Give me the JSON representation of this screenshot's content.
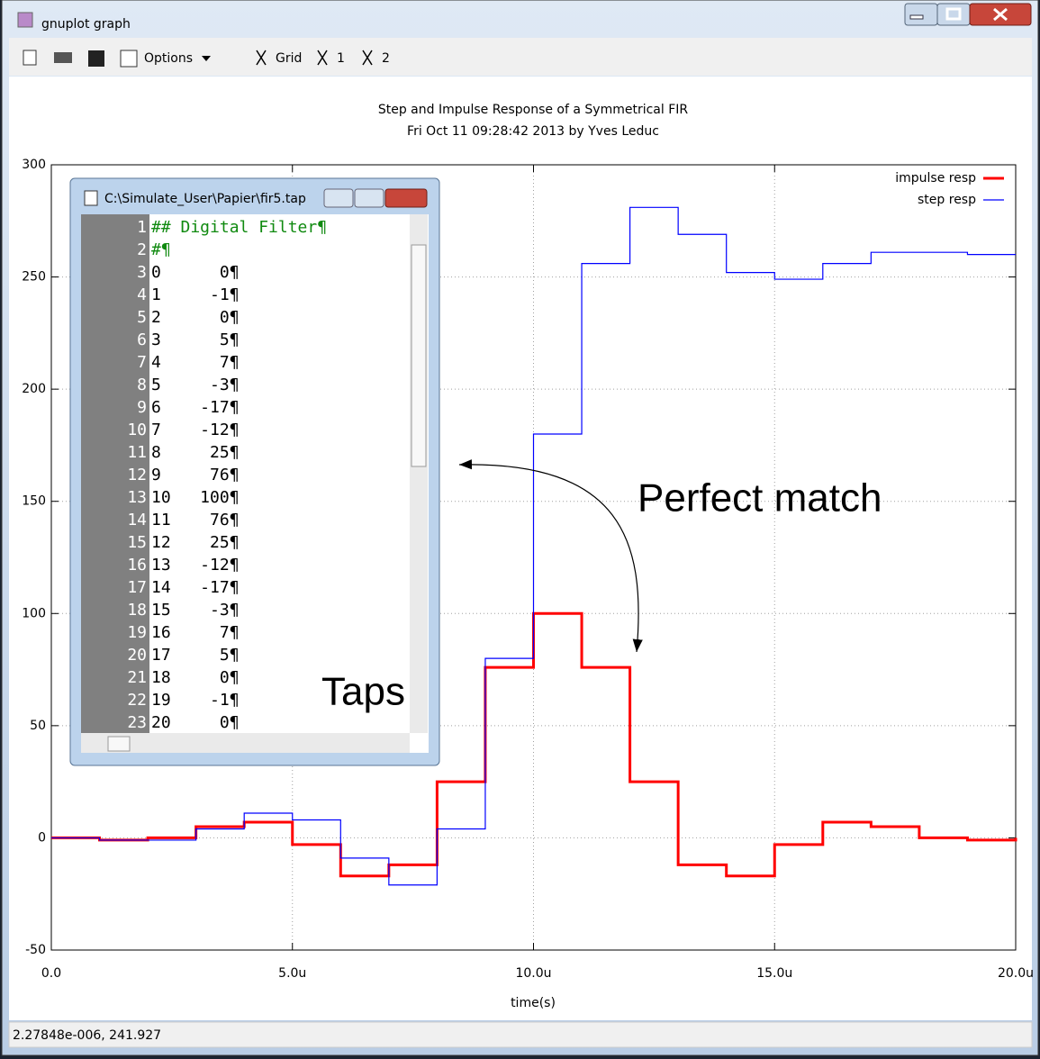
{
  "window": {
    "title": "gnuplot graph"
  },
  "toolbar": {
    "options": "Options",
    "grid": "Grid",
    "copy1": "1",
    "copy2": "2"
  },
  "status": "2.27848e-006, 241.927",
  "editor": {
    "title": "C:\\Simulate_User\\Papier\\fir5.tap",
    "line_numbers": [
      1,
      2,
      3,
      4,
      5,
      6,
      7,
      8,
      9,
      10,
      11,
      12,
      13,
      14,
      15,
      16,
      17,
      18,
      19,
      20,
      21,
      22,
      23
    ],
    "lines": [
      "## Digital Filter¶",
      "#¶",
      "0      0¶",
      "1     -1¶",
      "2      0¶",
      "3      5¶",
      "4      7¶",
      "5     -3¶",
      "6    -17¶",
      "7    -12¶",
      "8     25¶",
      "9     76¶",
      "10   100¶",
      "11    76¶",
      "12    25¶",
      "13   -12¶",
      "14   -17¶",
      "15    -3¶",
      "16     7¶",
      "17     5¶",
      "18     0¶",
      "19    -1¶",
      "20     0¶"
    ]
  },
  "chart_data": {
    "type": "line",
    "drawstyle": "steps",
    "title": "Step and Impulse Response of a Symmetrical FIR",
    "subtitle": "Fri Oct 11 09:28:42 2013 by Yves Leduc",
    "x_label": "time(s)",
    "x": [
      0,
      1,
      2,
      3,
      4,
      5,
      6,
      7,
      8,
      9,
      10,
      11,
      12,
      13,
      14,
      15,
      16,
      17,
      18,
      19,
      20
    ],
    "series": [
      {
        "name": "impulse resp",
        "color": "#ff0000",
        "values": [
          0,
          -1,
          0,
          5,
          7,
          -3,
          -17,
          -12,
          25,
          76,
          100,
          76,
          25,
          -12,
          -17,
          -3,
          7,
          5,
          0,
          -1,
          0
        ]
      },
      {
        "name": "step resp",
        "color": "#0000ff",
        "values": [
          0,
          -1,
          -1,
          4,
          11,
          8,
          -9,
          -21,
          4,
          80,
          180,
          256,
          281,
          269,
          252,
          249,
          256,
          261,
          261,
          260,
          260
        ]
      }
    ],
    "xlim": [
      0,
      20
    ],
    "xticks": [
      {
        "value": 0,
        "label": "0.0"
      },
      {
        "value": 5,
        "label": "5.0u"
      },
      {
        "value": 10,
        "label": "10.0u"
      },
      {
        "value": 15,
        "label": "15.0u"
      },
      {
        "value": 20,
        "label": "20.0u"
      }
    ],
    "ylim": [
      -50,
      300
    ],
    "yticks": [
      -50,
      0,
      50,
      100,
      150,
      200,
      250,
      300
    ],
    "grid": true,
    "legend": "top right"
  },
  "annotations": {
    "match": "Perfect match",
    "taps": "Taps"
  }
}
